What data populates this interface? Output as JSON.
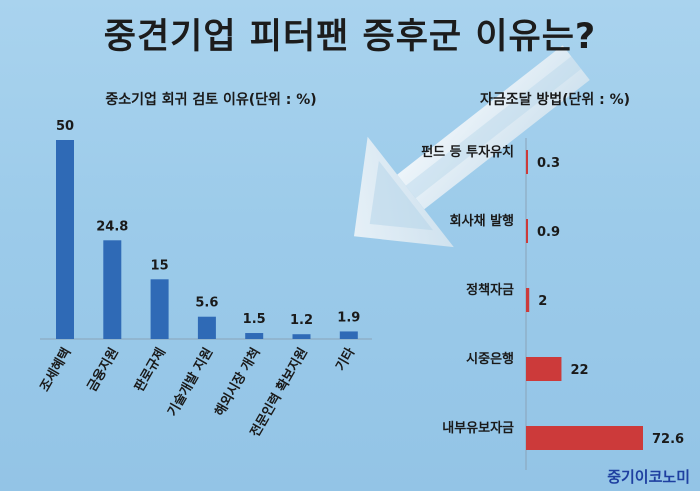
{
  "title": "중견기업 피터팬 증후군 이유는?",
  "brand": "중기이코노미",
  "chart_data": [
    {
      "type": "bar",
      "title": "중소기업 회귀 검토 이유(단위 : %)",
      "categories": [
        "조세혜택",
        "금융지원",
        "판로규제",
        "기술개발 지원",
        "해외시장 개척",
        "전문인력 확보지원",
        "기타"
      ],
      "values": [
        50,
        24.8,
        15,
        5.6,
        1.5,
        1.2,
        1.9
      ],
      "value_labels": [
        "50",
        "24.8",
        "15",
        "5.6",
        "1.5",
        "1.2",
        "1.9"
      ],
      "ylim": [
        0,
        50
      ],
      "color": "#2f6ab6"
    },
    {
      "type": "bar",
      "orientation": "horizontal",
      "title": "자금조달 방법(단위 : %)",
      "categories": [
        "펀드 등 투자유치",
        "회사채 발행",
        "정책자금",
        "시중은행",
        "내부유보자금"
      ],
      "values": [
        0.3,
        0.9,
        2,
        22,
        72.6
      ],
      "value_labels": [
        "0.3",
        "0.9",
        "2",
        "22",
        "72.6"
      ],
      "xlim": [
        0,
        72.6
      ],
      "color": "#cc3a3a"
    }
  ]
}
